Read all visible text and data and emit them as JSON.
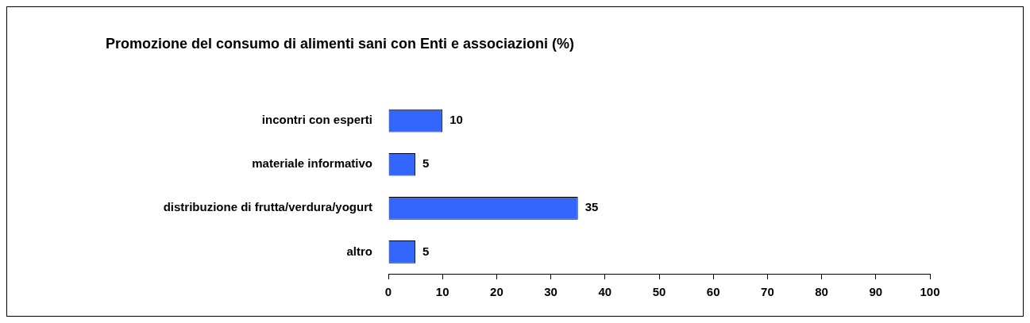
{
  "chart_data": {
    "type": "bar",
    "orientation": "horizontal",
    "title": "Promozione del consumo di alimenti sani con Enti e associazioni (%)",
    "categories": [
      "incontri con esperti",
      "materiale informativo",
      "distribuzione di frutta/verdura/yogurt",
      "altro"
    ],
    "values": [
      10,
      5,
      35,
      5
    ],
    "color": "#3366ff",
    "xlim": [
      0,
      100
    ],
    "xticks": [
      0,
      10,
      20,
      30,
      40,
      50,
      60,
      70,
      80,
      90,
      100
    ],
    "grid": false,
    "legend": false,
    "data_labels": true
  }
}
